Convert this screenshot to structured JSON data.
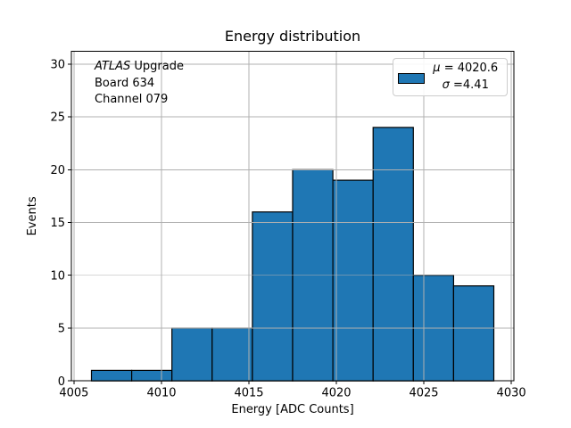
{
  "figure": {
    "title": "Energy distribution",
    "xlabel": "Energy [ADC Counts]",
    "ylabel": "Events"
  },
  "annotation": {
    "line1_italic": "ATLAS",
    "line1_rest": " Upgrade",
    "line2": "Board 634",
    "line3": "Channel 079"
  },
  "legend": {
    "swatch_color": "#1f77b4",
    "entries": [
      {
        "symbol": "μ",
        "rest": " = 4020.6"
      },
      {
        "symbol": "σ",
        "rest": " =4.41"
      }
    ]
  },
  "chart_data": {
    "type": "bar",
    "title": "Energy distribution",
    "xlabel": "Energy [ADC Counts]",
    "ylabel": "Events",
    "bin_edges": [
      4006.0,
      4008.3,
      4010.6,
      4012.9,
      4015.2,
      4017.5,
      4019.8,
      4022.1,
      4024.4,
      4026.7,
      4029.0
    ],
    "counts": [
      1,
      1,
      5,
      5,
      16,
      20,
      19,
      24,
      10,
      9
    ],
    "total_events": 110,
    "stats": {
      "mu": 4020.6,
      "sigma": 4.41
    },
    "xlim": [
      4004.85,
      4030.15
    ],
    "ylim": [
      0,
      31.2
    ],
    "xticks": [
      4005,
      4010,
      4015,
      4020,
      4025,
      4030
    ],
    "yticks": [
      0,
      5,
      10,
      15,
      20,
      25,
      30
    ],
    "bar_color": "#1f77b4",
    "bar_edge_color": "#000000",
    "grid": true,
    "grid_color": "#b0b0b0",
    "legend_position": "upper right"
  }
}
